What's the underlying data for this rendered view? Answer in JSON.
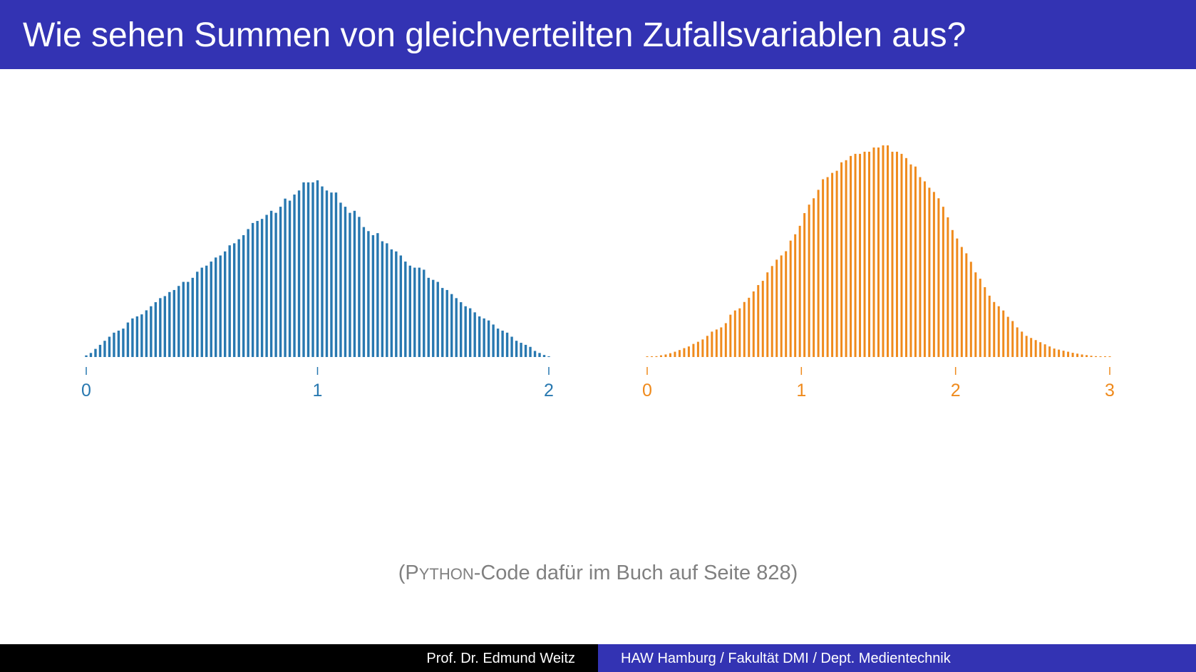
{
  "header": {
    "title": "Wie sehen Summen von gleichverteilten Zufallsvariablen aus?"
  },
  "note": {
    "open": "(P",
    "smallcaps": "YTHON",
    "rest": "-Code dafür im Buch auf Seite 828)"
  },
  "footer": {
    "author": "Prof. Dr. Edmund Weitz",
    "institution": "HAW Hamburg / Fakultät DMI / Dept. Medientechnik"
  },
  "colors": {
    "header_bg": "#3333b3",
    "blue_bars": "#2878b0",
    "orange_bars": "#ef8a1c",
    "note_text": "#808080"
  },
  "chart_data": [
    {
      "type": "bar",
      "title": "",
      "xlabel": "",
      "ylabel": "",
      "color": "#2878b0",
      "xlim": [
        0,
        2
      ],
      "ylim": [
        0,
        1.0
      ],
      "xticks": [
        0,
        1,
        2
      ],
      "xtick_labels": [
        "0",
        "1",
        "2"
      ],
      "grid": false,
      "x": [
        0.0,
        0.02,
        0.04,
        0.06,
        0.08,
        0.1,
        0.12,
        0.14,
        0.16,
        0.18,
        0.2,
        0.22,
        0.24,
        0.26,
        0.28,
        0.3,
        0.32,
        0.34,
        0.36,
        0.38,
        0.4,
        0.42,
        0.44,
        0.46,
        0.48,
        0.5,
        0.52,
        0.54,
        0.56,
        0.58,
        0.6,
        0.62,
        0.64,
        0.66,
        0.68,
        0.7,
        0.72,
        0.74,
        0.76,
        0.78,
        0.8,
        0.82,
        0.84,
        0.86,
        0.88,
        0.9,
        0.92,
        0.94,
        0.96,
        0.98,
        1.0,
        1.02,
        1.04,
        1.06,
        1.08,
        1.1,
        1.12,
        1.14,
        1.16,
        1.18,
        1.2,
        1.22,
        1.24,
        1.26,
        1.28,
        1.3,
        1.32,
        1.34,
        1.36,
        1.38,
        1.4,
        1.42,
        1.44,
        1.46,
        1.48,
        1.5,
        1.52,
        1.54,
        1.56,
        1.58,
        1.6,
        1.62,
        1.64,
        1.66,
        1.68,
        1.7,
        1.72,
        1.74,
        1.76,
        1.78,
        1.8,
        1.82,
        1.84,
        1.86,
        1.88,
        1.9,
        1.92,
        1.94,
        1.96,
        1.98,
        2.0
      ],
      "values": [
        0.008,
        0.02,
        0.04,
        0.06,
        0.08,
        0.1,
        0.12,
        0.13,
        0.14,
        0.17,
        0.19,
        0.2,
        0.21,
        0.23,
        0.25,
        0.27,
        0.29,
        0.3,
        0.32,
        0.33,
        0.35,
        0.37,
        0.37,
        0.39,
        0.42,
        0.44,
        0.45,
        0.47,
        0.49,
        0.5,
        0.52,
        0.55,
        0.56,
        0.58,
        0.6,
        0.63,
        0.66,
        0.67,
        0.68,
        0.7,
        0.72,
        0.71,
        0.74,
        0.78,
        0.77,
        0.8,
        0.82,
        0.86,
        0.86,
        0.86,
        0.87,
        0.84,
        0.82,
        0.81,
        0.81,
        0.76,
        0.74,
        0.71,
        0.72,
        0.69,
        0.64,
        0.62,
        0.6,
        0.61,
        0.57,
        0.56,
        0.53,
        0.52,
        0.5,
        0.47,
        0.45,
        0.44,
        0.44,
        0.43,
        0.39,
        0.38,
        0.37,
        0.34,
        0.33,
        0.31,
        0.29,
        0.27,
        0.25,
        0.24,
        0.22,
        0.2,
        0.19,
        0.18,
        0.16,
        0.14,
        0.13,
        0.12,
        0.1,
        0.08,
        0.07,
        0.06,
        0.05,
        0.03,
        0.02,
        0.01,
        0.003
      ]
    },
    {
      "type": "bar",
      "title": "",
      "xlabel": "",
      "ylabel": "",
      "color": "#ef8a1c",
      "xlim": [
        0,
        3
      ],
      "ylim": [
        0,
        1.0
      ],
      "xticks": [
        0,
        1,
        2,
        3
      ],
      "xtick_labels": [
        "0",
        "1",
        "2",
        "3"
      ],
      "grid": false,
      "x": [
        0.0,
        0.03,
        0.06,
        0.09,
        0.12,
        0.15,
        0.18,
        0.21,
        0.24,
        0.27,
        0.3,
        0.33,
        0.36,
        0.39,
        0.42,
        0.45,
        0.48,
        0.51,
        0.54,
        0.57,
        0.6,
        0.63,
        0.66,
        0.69,
        0.72,
        0.75,
        0.78,
        0.81,
        0.84,
        0.87,
        0.9,
        0.93,
        0.96,
        0.99,
        1.02,
        1.05,
        1.08,
        1.11,
        1.14,
        1.17,
        1.2,
        1.23,
        1.26,
        1.29,
        1.32,
        1.35,
        1.38,
        1.41,
        1.44,
        1.47,
        1.5,
        1.53,
        1.56,
        1.59,
        1.62,
        1.65,
        1.68,
        1.71,
        1.74,
        1.77,
        1.8,
        1.83,
        1.86,
        1.89,
        1.92,
        1.95,
        1.98,
        2.01,
        2.04,
        2.07,
        2.1,
        2.13,
        2.16,
        2.19,
        2.22,
        2.25,
        2.28,
        2.31,
        2.34,
        2.37,
        2.4,
        2.43,
        2.46,
        2.49,
        2.52,
        2.55,
        2.58,
        2.61,
        2.64,
        2.67,
        2.7,
        2.73,
        2.76,
        2.79,
        2.82,
        2.85,
        2.88,
        2.91,
        2.94,
        2.97,
        3.0
      ],
      "values": [
        0.0,
        0.002,
        0.004,
        0.008,
        0.012,
        0.018,
        0.025,
        0.033,
        0.042,
        0.05,
        0.062,
        0.072,
        0.083,
        0.1,
        0.12,
        0.13,
        0.14,
        0.16,
        0.2,
        0.22,
        0.23,
        0.26,
        0.28,
        0.31,
        0.34,
        0.36,
        0.4,
        0.43,
        0.46,
        0.48,
        0.5,
        0.55,
        0.58,
        0.62,
        0.68,
        0.72,
        0.75,
        0.79,
        0.84,
        0.85,
        0.87,
        0.88,
        0.92,
        0.93,
        0.95,
        0.96,
        0.96,
        0.97,
        0.97,
        0.99,
        0.99,
        1.0,
        1.0,
        0.97,
        0.97,
        0.96,
        0.94,
        0.91,
        0.9,
        0.85,
        0.83,
        0.8,
        0.78,
        0.75,
        0.71,
        0.66,
        0.6,
        0.56,
        0.52,
        0.49,
        0.45,
        0.4,
        0.37,
        0.33,
        0.29,
        0.26,
        0.24,
        0.22,
        0.19,
        0.17,
        0.14,
        0.12,
        0.1,
        0.09,
        0.08,
        0.07,
        0.06,
        0.05,
        0.04,
        0.035,
        0.03,
        0.025,
        0.02,
        0.016,
        0.012,
        0.009,
        0.006,
        0.004,
        0.002,
        0.001,
        0.0
      ]
    }
  ]
}
